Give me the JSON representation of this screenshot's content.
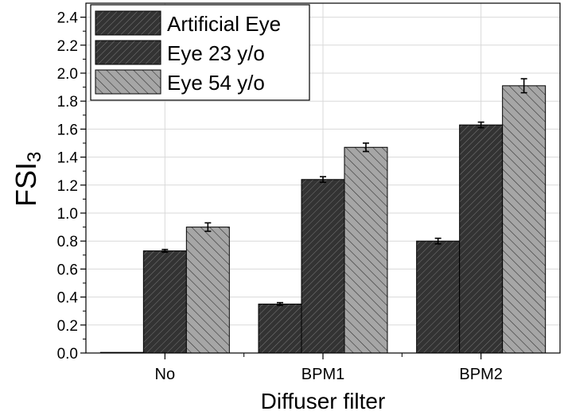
{
  "chart_data": {
    "type": "bar",
    "xlabel": "Diffuser filter",
    "ylabel_main": "FSI",
    "ylabel_sub": "3",
    "categories": [
      "No",
      "BPM1",
      "BPM2"
    ],
    "ylim": [
      0,
      2.5
    ],
    "yticks": [
      "0.0",
      "0.2",
      "0.4",
      "0.6",
      "0.8",
      "1.0",
      "1.2",
      "1.4",
      "1.6",
      "1.8",
      "2.0",
      "2.2",
      "2.4"
    ],
    "ytick_values": [
      0,
      0.2,
      0.4,
      0.6,
      0.8,
      1.0,
      1.2,
      1.4,
      1.6,
      1.8,
      2.0,
      2.2,
      2.4
    ],
    "grid": true,
    "legend_position": "top-left",
    "series": [
      {
        "name": "Artificial Eye",
        "values": [
          0.0,
          0.35,
          0.8
        ],
        "errors": [
          0.0,
          0.01,
          0.02
        ],
        "color": "#333333",
        "hatch": "forward"
      },
      {
        "name": "Eye 23 y/o",
        "values": [
          0.73,
          1.24,
          1.63
        ],
        "errors": [
          0.01,
          0.02,
          0.02
        ],
        "color": "#333333",
        "hatch": "forward"
      },
      {
        "name": "Eye 54 y/o",
        "values": [
          0.9,
          1.47,
          1.91
        ],
        "errors": [
          0.03,
          0.03,
          0.05
        ],
        "color": "#a6a6a6",
        "hatch": "backward"
      }
    ]
  }
}
